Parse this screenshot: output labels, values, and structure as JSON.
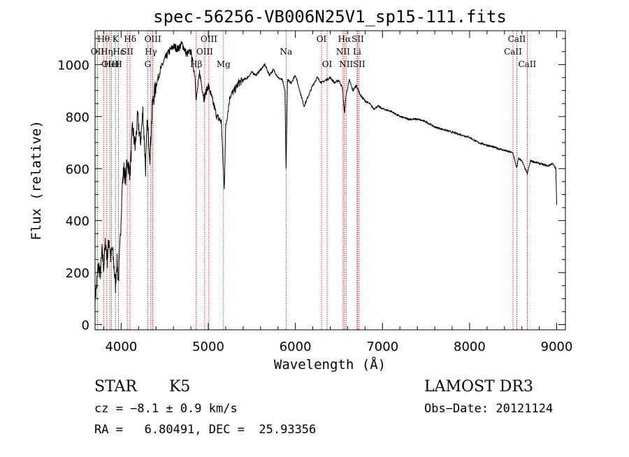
{
  "chart_data": {
    "type": "line",
    "title": "spec-56256-VB006N25V1_sp15-111.fits",
    "xlabel": "Wavelength (Å)",
    "ylabel": "Flux (relative)",
    "xlim": [
      3700,
      9100
    ],
    "ylim": [
      -20,
      1130
    ],
    "xticks": [
      4000,
      5000,
      6000,
      7000,
      8000,
      9000
    ],
    "yticks": [
      0,
      200,
      400,
      600,
      800,
      1000
    ],
    "series": [
      {
        "name": "flux",
        "x": [
          3700,
          3720,
          3740,
          3760,
          3780,
          3800,
          3820,
          3840,
          3860,
          3880,
          3900,
          3920,
          3934,
          3950,
          3969,
          3990,
          4010,
          4030,
          4050,
          4070,
          4102,
          4130,
          4160,
          4190,
          4220,
          4250,
          4280,
          4300,
          4330,
          4360,
          4400,
          4450,
          4500,
          4550,
          4600,
          4650,
          4700,
          4750,
          4800,
          4850,
          4861,
          4900,
          4950,
          5000,
          5050,
          5100,
          5150,
          5170,
          5183,
          5200,
          5250,
          5300,
          5350,
          5400,
          5450,
          5500,
          5550,
          5600,
          5650,
          5700,
          5750,
          5800,
          5850,
          5880,
          5893,
          5910,
          5950,
          6000,
          6050,
          6100,
          6150,
          6200,
          6250,
          6300,
          6350,
          6400,
          6450,
          6500,
          6540,
          6563,
          6580,
          6620,
          6660,
          6700,
          6750,
          6800,
          6850,
          6900,
          6950,
          7000,
          7100,
          7200,
          7300,
          7400,
          7500,
          7600,
          7700,
          7800,
          7900,
          8000,
          8100,
          8200,
          8300,
          8400,
          8498,
          8542,
          8560,
          8600,
          8662,
          8700,
          8800,
          8900,
          8950,
          8990,
          9000
        ],
        "y": [
          100,
          160,
          230,
          190,
          280,
          220,
          320,
          250,
          330,
          260,
          290,
          210,
          150,
          250,
          170,
          330,
          520,
          600,
          560,
          630,
          580,
          760,
          680,
          800,
          700,
          820,
          600,
          780,
          650,
          850,
          920,
          980,
          1020,
          1050,
          1070,
          1060,
          1080,
          1040,
          1050,
          950,
          860,
          970,
          870,
          920,
          860,
          800,
          780,
          620,
          520,
          760,
          880,
          900,
          930,
          940,
          950,
          970,
          960,
          980,
          1000,
          960,
          980,
          950,
          940,
          900,
          600,
          940,
          930,
          960,
          900,
          840,
          880,
          920,
          950,
          930,
          940,
          950,
          930,
          940,
          910,
          810,
          880,
          940,
          900,
          920,
          880,
          860,
          850,
          830,
          840,
          830,
          820,
          800,
          790,
          790,
          780,
          760,
          750,
          740,
          730,
          720,
          700,
          690,
          680,
          670,
          660,
          600,
          640,
          630,
          580,
          630,
          620,
          610,
          620,
          600,
          460
        ]
      }
    ],
    "annotations": [
      {
        "label": "Hθ",
        "x": 3798,
        "row": 1
      },
      {
        "label": "OII",
        "x": 3727,
        "row": 2
      },
      {
        "label": "OIII",
        "x": 3869,
        "row": 3
      },
      {
        "label": "Hη",
        "x": 3835,
        "row": 2
      },
      {
        "label": "HeI",
        "x": 3889,
        "row": 3
      },
      {
        "label": "K",
        "x": 3934,
        "row": 1
      },
      {
        "label": "Hε",
        "x": 3970,
        "row": 2
      },
      {
        "label": "SII",
        "x": 4070,
        "row": 2
      },
      {
        "label": "H",
        "x": 3969,
        "row": 3
      },
      {
        "label": "Hδ",
        "x": 4102,
        "row": 1
      },
      {
        "label": "OIII",
        "x": 4363,
        "row": 1
      },
      {
        "label": "Hγ",
        "x": 4341,
        "row": 2
      },
      {
        "label": "G",
        "x": 4305,
        "row": 3
      },
      {
        "label": "OIII",
        "x": 5007,
        "row": 1
      },
      {
        "label": "OIII",
        "x": 4959,
        "row": 2
      },
      {
        "label": "Hβ",
        "x": 4861,
        "row": 3
      },
      {
        "label": "Mg",
        "x": 5175,
        "row": 3
      },
      {
        "label": "Na",
        "x": 5893,
        "row": 2
      },
      {
        "label": "OI",
        "x": 6300,
        "row": 1
      },
      {
        "label": "OI",
        "x": 6364,
        "row": 3
      },
      {
        "label": "Hα",
        "x": 6563,
        "row": 1
      },
      {
        "label": "NII",
        "x": 6548,
        "row": 2
      },
      {
        "label": "NII",
        "x": 6583,
        "row": 3
      },
      {
        "label": "SII",
        "x": 6716,
        "row": 1
      },
      {
        "label": "Li",
        "x": 6708,
        "row": 2
      },
      {
        "label": "SII",
        "x": 6731,
        "row": 3
      },
      {
        "label": "CaII",
        "x": 8542,
        "row": 1
      },
      {
        "label": "CaII",
        "x": 8498,
        "row": 2
      },
      {
        "label": "CaII",
        "x": 8662,
        "row": 3
      }
    ],
    "line_markers": [
      3727,
      3798,
      3835,
      3869,
      3889,
      3934,
      3969,
      4070,
      4102,
      4305,
      4341,
      4363,
      4861,
      4959,
      5007,
      5175,
      5893,
      6300,
      6364,
      6548,
      6563,
      6583,
      6708,
      6716,
      6731,
      8498,
      8542,
      8662
    ]
  },
  "info": {
    "object_class": "STAR",
    "subclass": "K5",
    "survey": "LAMOST DR3",
    "cz": "cz = −8.1 ± 0.9 km/s",
    "obs_date": "Obs−Date: 20121124",
    "coords": "RA =   6.80491, DEC =  25.93356"
  },
  "colors": {
    "spectrum": "#000000",
    "line_marker": "#cc0000",
    "axes": "#000000"
  }
}
